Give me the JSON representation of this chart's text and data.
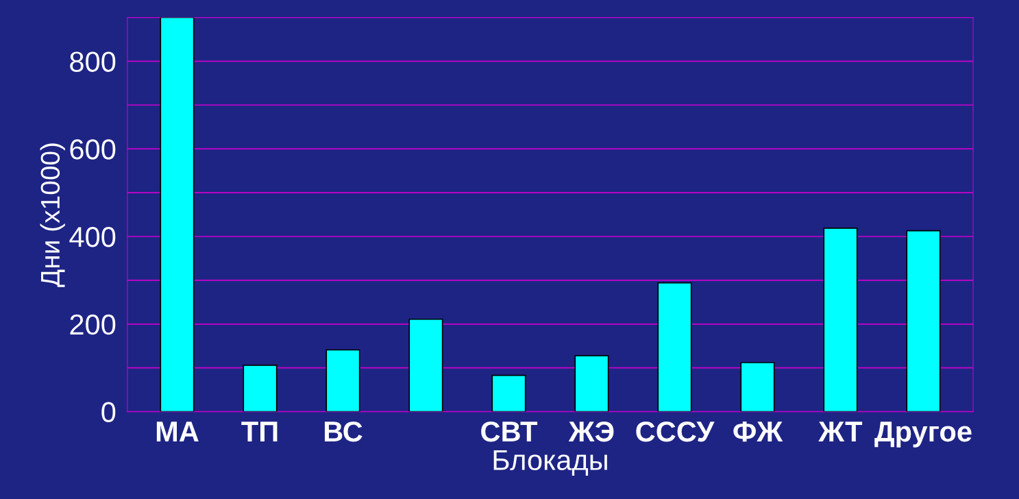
{
  "chart_data": {
    "type": "bar",
    "xlabel": "Блокады",
    "ylabel": "Дни (x1000)",
    "categories": [
      "МА",
      "ТП",
      "ВС",
      null,
      "СВТ",
      "ЖЭ",
      "СССУ",
      "ФЖ",
      "ЖТ",
      "Другое"
    ],
    "values": [
      900,
      106,
      141,
      211,
      83,
      128,
      294,
      112,
      419,
      413
    ],
    "color": "#00ffff",
    "ylim": [
      0,
      900
    ],
    "yticks": [
      0,
      {
        "value": 100,
        "label": null
      },
      200,
      {
        "value": 300,
        "label": null
      },
      400,
      {
        "value": 500,
        "label": null
      },
      600,
      {
        "value": 700,
        "label": null
      },
      800,
      {
        "value": 900,
        "label": null
      }
    ],
    "grid": "y"
  }
}
